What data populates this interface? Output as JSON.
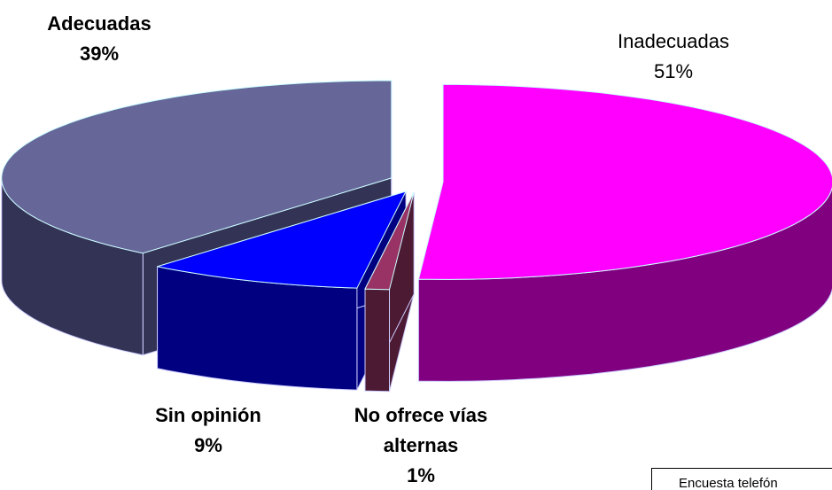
{
  "chart_data": {
    "type": "pie3d",
    "categories": [
      "Inadecuadas",
      "No ofrece vías alternas",
      "Sin opinión",
      "Adecuadas"
    ],
    "values": [
      51,
      1,
      9,
      39
    ],
    "value_labels": [
      "51%",
      "1%",
      "9%",
      "39%"
    ],
    "colors": [
      "#ff00ff",
      "#993366",
      "#0000ff",
      "#666699"
    ],
    "side_colors": [
      "#800080",
      "#4d1a33",
      "#000080",
      "#333355"
    ],
    "annotation": "Encuesta telefón"
  }
}
